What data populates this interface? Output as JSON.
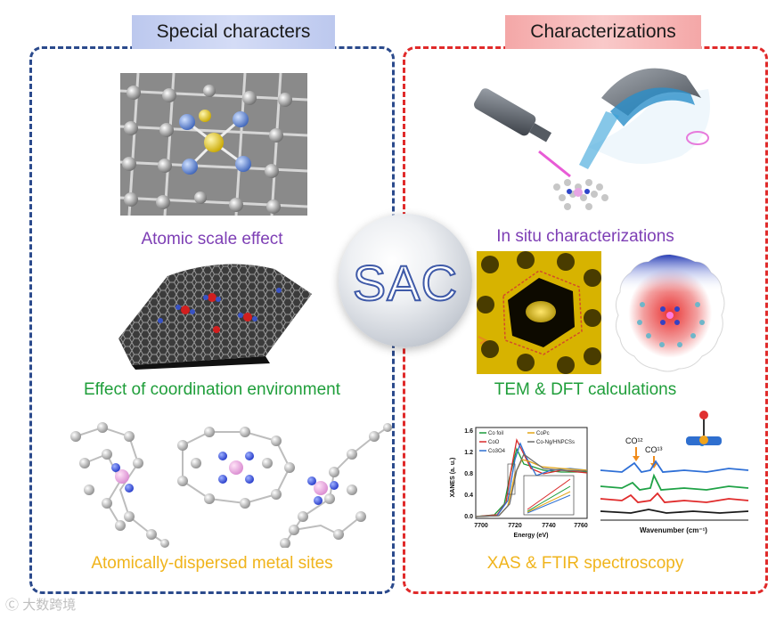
{
  "headers": {
    "left": "Special characters",
    "right": "Characterizations"
  },
  "center": {
    "label": "SAC"
  },
  "left_captions": [
    "Atomic scale effect",
    "Effect of coordination environment",
    "Atomically-dispersed metal sites"
  ],
  "right_captions": [
    "In situ characterizations",
    "TEM & DFT calculations",
    "XAS & FTIR spectroscopy"
  ],
  "xanes": {
    "ylabel": "XANES (a. u.)",
    "xlabel": "Energy (eV)",
    "yticks": [
      "1.6",
      "1.2",
      "0.8",
      "0.4",
      "0.0"
    ],
    "xticks": [
      "7700",
      "7720",
      "7740",
      "7760"
    ],
    "legend": [
      "Co foil",
      "CoO",
      "Co3O4",
      "CoPc",
      "Co-Ng/HNPCSs"
    ]
  },
  "ftir": {
    "xlabel": "Wavenumber (cm⁻¹)",
    "label_a": "CO¹²",
    "label_b": "CO¹³"
  },
  "watermark": "大数跨境",
  "colors": {
    "left_border": "#2b4a8c",
    "right_border": "#e02a2a",
    "purple": "#7e3fb5",
    "green": "#1f9e3a",
    "orange": "#f0b41c"
  }
}
